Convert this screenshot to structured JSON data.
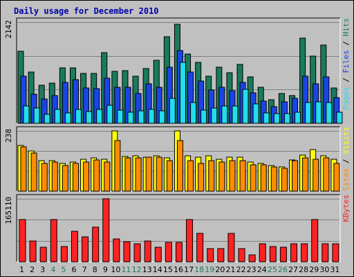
{
  "colors": {
    "hits": "#1a7a5c",
    "files": "#1a45e6",
    "pages": "#22ddee",
    "visits": "#ffff00",
    "sites": "#ff8c00",
    "kbytes": "#ff2222",
    "title": "#0000aa",
    "weekend": "#1a7a5c",
    "text": "#000000",
    "panel": "#c0c0c0",
    "grid": "#808080"
  },
  "chart_data": [
    {
      "type": "bar",
      "title": "Daily usage for December 2010",
      "categories": [
        "1",
        "2",
        "3",
        "4",
        "5",
        "6",
        "7",
        "8",
        "9",
        "10",
        "11",
        "12",
        "13",
        "14",
        "15",
        "16",
        "17",
        "18",
        "19",
        "20",
        "21",
        "22",
        "23",
        "24",
        "25",
        "26",
        "27",
        "28",
        "29",
        "30",
        "31"
      ],
      "weekend_days": [
        "4",
        "5",
        "11",
        "12",
        "18",
        "19",
        "25",
        "26"
      ],
      "ymax_label": "2142",
      "ylim": [
        0,
        2142
      ],
      "legend": [
        "Pages",
        "Files",
        "Hits"
      ],
      "legend_separator": " / ",
      "series": [
        {
          "name": "Hits",
          "values": [
            1530,
            1080,
            800,
            850,
            1170,
            1170,
            1050,
            1050,
            1500,
            1100,
            1110,
            1000,
            1160,
            1330,
            1840,
            2100,
            1470,
            1290,
            1000,
            1190,
            1070,
            1250,
            980,
            760,
            500,
            630,
            580,
            1800,
            1430,
            1660,
            750
          ]
        },
        {
          "name": "Files",
          "values": [
            1000,
            610,
            520,
            590,
            860,
            920,
            750,
            740,
            960,
            760,
            760,
            630,
            830,
            770,
            1190,
            1540,
            1080,
            900,
            700,
            760,
            690,
            860,
            650,
            470,
            350,
            450,
            530,
            1000,
            840,
            990,
            540
          ]
        },
        {
          "name": "Pages",
          "values": [
            360,
            320,
            190,
            300,
            220,
            300,
            250,
            300,
            380,
            280,
            230,
            270,
            300,
            270,
            530,
            1290,
            440,
            280,
            330,
            360,
            360,
            720,
            410,
            220,
            200,
            210,
            240,
            440,
            450,
            440,
            240
          ]
        }
      ]
    },
    {
      "type": "bar",
      "ymax_label": "238",
      "ylim": [
        0,
        238
      ],
      "legend": [
        "Sites",
        "Visits"
      ],
      "legend_separator": " / ",
      "series": [
        {
          "name": "Visits",
          "values": [
            180,
            160,
            120,
            120,
            110,
            115,
            127,
            130,
            125,
            238,
            137,
            140,
            135,
            140,
            130,
            238,
            140,
            135,
            140,
            127,
            135,
            135,
            115,
            110,
            100,
            95,
            124,
            142,
            165,
            140,
            125
          ]
        },
        {
          "name": "Sites",
          "values": [
            176,
            150,
            110,
            115,
            102,
            110,
            115,
            123,
            115,
            200,
            130,
            130,
            135,
            133,
            120,
            200,
            120,
            110,
            120,
            115,
            120,
            120,
            105,
            105,
            95,
            90,
            120,
            130,
            125,
            130,
            110
          ]
        }
      ]
    },
    {
      "type": "bar",
      "ymax_label": "165110",
      "ylim": [
        0,
        165110
      ],
      "legend": [
        "KBytes"
      ],
      "series": [
        {
          "name": "KBytes",
          "values": [
            110000,
            55000,
            38000,
            110000,
            40000,
            80000,
            65000,
            90000,
            165110,
            60000,
            53000,
            47000,
            55000,
            38000,
            50000,
            50000,
            110000,
            75000,
            35000,
            35000,
            75000,
            35000,
            18000,
            48000,
            40000,
            38000,
            48000,
            48000,
            110000,
            48000,
            48000
          ]
        }
      ]
    }
  ]
}
